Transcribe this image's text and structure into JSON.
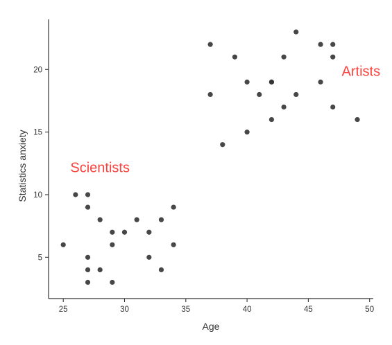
{
  "chart_data": {
    "type": "scatter",
    "title": "",
    "xlabel": "Age",
    "ylabel": "Statistics anxiety",
    "xlim": [
      23.8,
      50.3
    ],
    "ylim": [
      1.7,
      24.0
    ],
    "x_ticks": [
      25,
      30,
      35,
      40,
      45,
      50
    ],
    "y_ticks": [
      5,
      10,
      15,
      20
    ],
    "grid": false,
    "legend": "none",
    "point_color": "#333333",
    "annotation_color": "#f8433f",
    "annotations": [
      {
        "text": "Scientists",
        "x": 28.0,
        "y": 11.8
      },
      {
        "text": "Artists",
        "x": 49.3,
        "y": 19.5
      }
    ],
    "points": [
      {
        "x": 25,
        "y": 6
      },
      {
        "x": 26,
        "y": 10
      },
      {
        "x": 27,
        "y": 10
      },
      {
        "x": 27,
        "y": 9
      },
      {
        "x": 27,
        "y": 5
      },
      {
        "x": 27,
        "y": 4
      },
      {
        "x": 27,
        "y": 3
      },
      {
        "x": 28,
        "y": 8
      },
      {
        "x": 28,
        "y": 4
      },
      {
        "x": 29,
        "y": 7
      },
      {
        "x": 29,
        "y": 6
      },
      {
        "x": 29,
        "y": 3
      },
      {
        "x": 30,
        "y": 7
      },
      {
        "x": 31,
        "y": 8
      },
      {
        "x": 32,
        "y": 7
      },
      {
        "x": 32,
        "y": 5
      },
      {
        "x": 33,
        "y": 8
      },
      {
        "x": 33,
        "y": 4
      },
      {
        "x": 34,
        "y": 9
      },
      {
        "x": 34,
        "y": 6
      },
      {
        "x": 37,
        "y": 22
      },
      {
        "x": 37,
        "y": 18
      },
      {
        "x": 38,
        "y": 14
      },
      {
        "x": 39,
        "y": 21
      },
      {
        "x": 40,
        "y": 19
      },
      {
        "x": 40,
        "y": 15
      },
      {
        "x": 41,
        "y": 18
      },
      {
        "x": 42,
        "y": 19
      },
      {
        "x": 42,
        "y": 19
      },
      {
        "x": 42,
        "y": 16
      },
      {
        "x": 43,
        "y": 21
      },
      {
        "x": 43,
        "y": 17
      },
      {
        "x": 44,
        "y": 23
      },
      {
        "x": 44,
        "y": 18
      },
      {
        "x": 46,
        "y": 22
      },
      {
        "x": 46,
        "y": 19
      },
      {
        "x": 47,
        "y": 22
      },
      {
        "x": 47,
        "y": 21
      },
      {
        "x": 47,
        "y": 17
      },
      {
        "x": 49,
        "y": 16
      }
    ]
  }
}
